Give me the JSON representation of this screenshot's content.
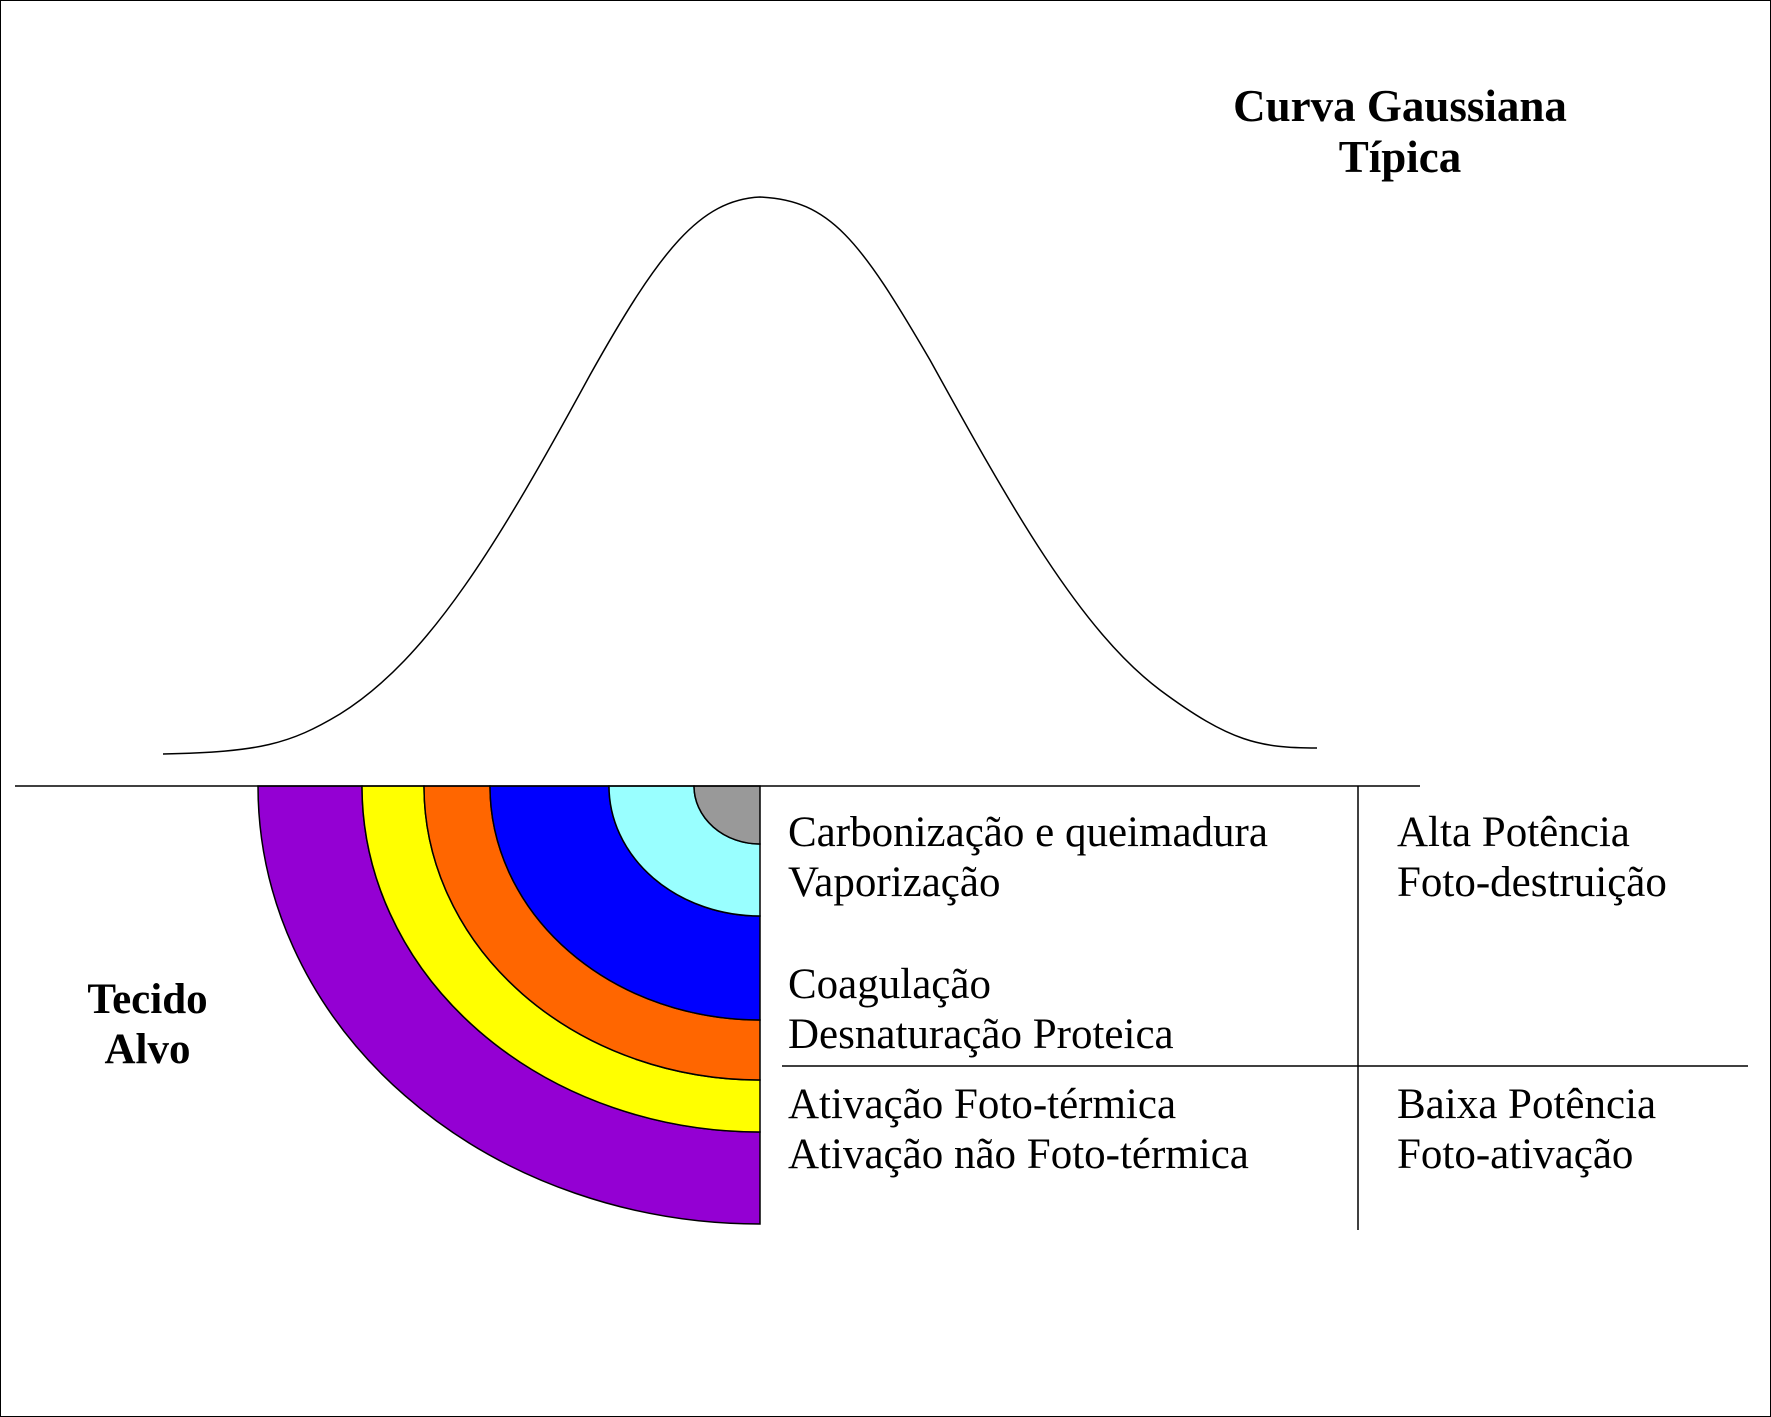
{
  "title": {
    "line1": "Curva Gaussiana",
    "line2": "Típica"
  },
  "tissue_label": {
    "line1": "Tecido",
    "line2": "Alvo"
  },
  "effects": [
    {
      "line1": "Carbonização e queimadura",
      "line2": "Vaporização"
    },
    {
      "line1": "Coagulação",
      "line2": "Desnaturação Proteica"
    },
    {
      "line1": "Ativação Foto-térmica",
      "line2": "Ativação não Foto-térmica"
    }
  ],
  "power_levels": [
    {
      "line1": "Alta Potência",
      "line2": "Foto-destruição"
    },
    {
      "line1": "Baixa Potência",
      "line2": "Foto-ativação"
    }
  ],
  "band_colors": {
    "purple": "#9400D3",
    "yellow": "#FFFF00",
    "orange": "#FF6600",
    "blue": "#0000FF",
    "cyan": "#99FFFF",
    "gray": "#999999"
  }
}
